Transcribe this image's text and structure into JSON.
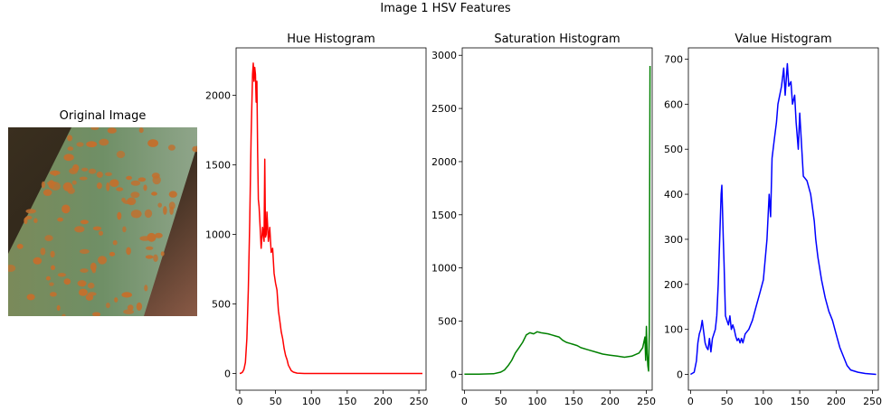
{
  "figure_title": "Image 1 HSV Features",
  "original_image": {
    "title": "Original Image",
    "subject": "green leaf with orange rust pustules",
    "colors": {
      "leaf": "#6f8f66",
      "pustule": "#c2702e",
      "background": "#2f261a"
    }
  },
  "chart_data": [
    {
      "type": "line",
      "title": "Hue Histogram",
      "color": "#ff0000",
      "xlim": [
        -5,
        260
      ],
      "ylim": [
        -120,
        2340
      ],
      "xticks": [
        0,
        50,
        100,
        150,
        200,
        250
      ],
      "yticks": [
        0,
        500,
        1000,
        1500,
        2000
      ],
      "grid": false,
      "x": [
        0,
        2,
        4,
        6,
        8,
        10,
        12,
        14,
        16,
        18,
        19,
        20,
        21,
        22,
        23,
        24,
        25,
        26,
        27,
        28,
        30,
        32,
        34,
        35,
        36,
        37,
        38,
        40,
        42,
        44,
        46,
        48,
        50,
        52,
        54,
        56,
        58,
        60,
        62,
        64,
        66,
        68,
        70,
        72,
        75,
        80,
        90,
        100,
        150,
        200,
        255
      ],
      "y": [
        0,
        3,
        10,
        30,
        80,
        250,
        600,
        1100,
        1700,
        2150,
        2230,
        2100,
        2200,
        2150,
        1950,
        2100,
        1600,
        1250,
        1200,
        1100,
        900,
        1050,
        950,
        1540,
        980,
        1000,
        1160,
        950,
        1050,
        870,
        900,
        720,
        650,
        600,
        450,
        380,
        300,
        250,
        180,
        130,
        100,
        60,
        40,
        20,
        10,
        3,
        0,
        0,
        0,
        0,
        0
      ]
    },
    {
      "type": "line",
      "title": "Saturation Histogram",
      "color": "#008000",
      "xlim": [
        -3,
        258
      ],
      "ylim": [
        -150,
        3070
      ],
      "xticks": [
        0,
        50,
        100,
        150,
        200,
        250
      ],
      "yticks": [
        0,
        500,
        1000,
        1500,
        2000,
        2500,
        3000
      ],
      "grid": false,
      "x": [
        0,
        20,
        40,
        50,
        55,
        60,
        65,
        70,
        75,
        80,
        85,
        90,
        95,
        100,
        105,
        110,
        115,
        120,
        125,
        130,
        135,
        140,
        145,
        150,
        155,
        160,
        170,
        180,
        190,
        200,
        210,
        220,
        230,
        240,
        245,
        248,
        249,
        250,
        251,
        252,
        253,
        254,
        255
      ],
      "y": [
        0,
        0,
        5,
        20,
        40,
        80,
        130,
        200,
        250,
        300,
        370,
        390,
        380,
        400,
        390,
        385,
        380,
        370,
        360,
        350,
        320,
        300,
        290,
        280,
        270,
        250,
        230,
        210,
        190,
        180,
        170,
        160,
        170,
        200,
        250,
        350,
        130,
        450,
        200,
        80,
        30,
        400,
        2900
      ]
    },
    {
      "type": "line",
      "title": "Value Histogram",
      "color": "#0000ff",
      "xlim": [
        -3,
        258
      ],
      "ylim": [
        -35,
        725
      ],
      "xticks": [
        0,
        50,
        100,
        150,
        200,
        250
      ],
      "yticks": [
        0,
        100,
        200,
        300,
        400,
        500,
        600,
        700
      ],
      "grid": false,
      "x": [
        0,
        5,
        8,
        10,
        12,
        14,
        16,
        18,
        20,
        22,
        24,
        26,
        28,
        30,
        32,
        34,
        36,
        38,
        40,
        42,
        43,
        44,
        45,
        46,
        48,
        50,
        52,
        54,
        56,
        58,
        60,
        62,
        64,
        66,
        68,
        70,
        72,
        75,
        80,
        85,
        90,
        95,
        100,
        105,
        108,
        110,
        112,
        115,
        118,
        120,
        125,
        128,
        130,
        133,
        135,
        138,
        140,
        143,
        145,
        148,
        150,
        155,
        160,
        165,
        170,
        172,
        175,
        180,
        185,
        190,
        195,
        200,
        205,
        210,
        215,
        220,
        230,
        240,
        255
      ],
      "y": [
        0,
        5,
        30,
        70,
        90,
        100,
        120,
        95,
        70,
        60,
        55,
        80,
        50,
        80,
        90,
        100,
        130,
        200,
        300,
        400,
        420,
        360,
        300,
        250,
        130,
        120,
        110,
        130,
        100,
        110,
        100,
        85,
        75,
        80,
        70,
        80,
        70,
        90,
        100,
        120,
        150,
        180,
        210,
        300,
        400,
        350,
        480,
        520,
        560,
        600,
        640,
        680,
        620,
        690,
        640,
        650,
        600,
        620,
        560,
        500,
        580,
        440,
        430,
        400,
        340,
        300,
        260,
        210,
        170,
        140,
        120,
        90,
        60,
        40,
        20,
        10,
        5,
        2,
        0
      ]
    }
  ]
}
